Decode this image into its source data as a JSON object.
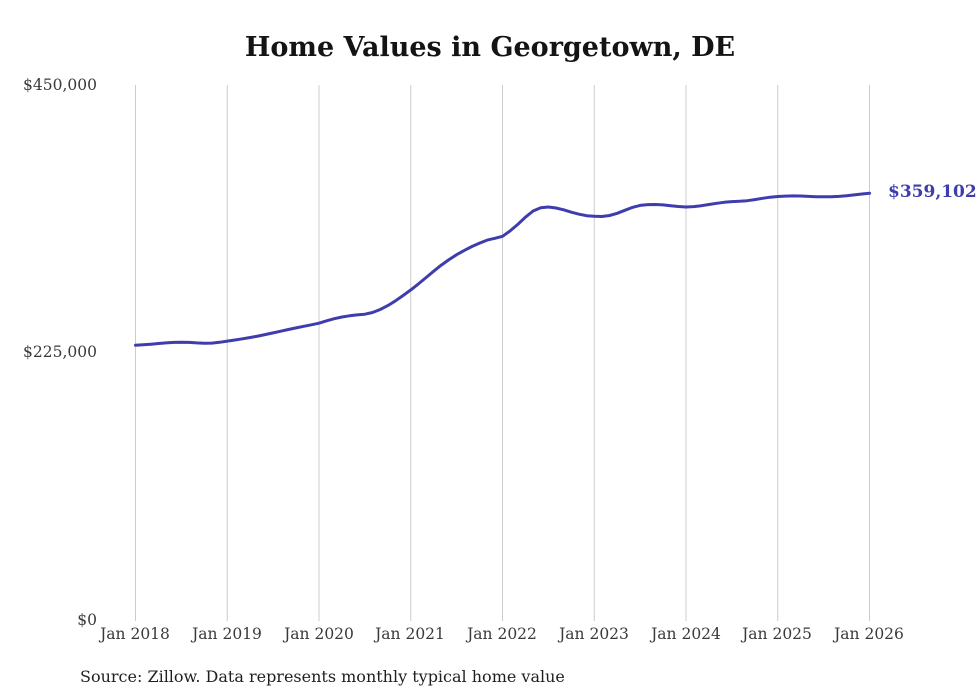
{
  "chart": {
    "title": "Home Values in Georgetown, DE",
    "end_label": "$359,102",
    "source": "Source: Zillow. Data represents monthly typical home value"
  },
  "chart_data": {
    "type": "line",
    "title": "Home Values in Georgetown, DE",
    "xlabel": "",
    "ylabel": "",
    "x_unit": "month",
    "x_start": "Jan 2018",
    "x_end": "Jan 2026",
    "x_ticks": [
      "Jan 2018",
      "Jan 2019",
      "Jan 2020",
      "Jan 2021",
      "Jan 2022",
      "Jan 2023",
      "Jan 2024",
      "Jan 2025",
      "Jan 2026"
    ],
    "y_ticks": [
      "$450,000",
      "$225,000",
      "$0"
    ],
    "ylim": [
      0,
      450000
    ],
    "grid": "vertical-only",
    "grid_color": "#cccccc",
    "legend": "none",
    "line_color": "#3f3dad",
    "label_color": "#3f3dad",
    "final_value": 359102,
    "final_value_label": "$359,102",
    "series_name": "Typical home value",
    "values": [
      231500,
      231900,
      232400,
      233000,
      233500,
      233900,
      234100,
      233900,
      233500,
      233200,
      233300,
      234000,
      235000,
      235900,
      236900,
      238000,
      239200,
      240500,
      241900,
      243300,
      244700,
      246100,
      247400,
      248700,
      250000,
      252000,
      253800,
      255200,
      256200,
      257000,
      257600,
      259000,
      261500,
      264800,
      268800,
      273300,
      278000,
      283000,
      288300,
      293700,
      298800,
      303400,
      307500,
      311100,
      314400,
      317300,
      319800,
      321300,
      323000,
      327500,
      333000,
      339000,
      344200,
      347000,
      347600,
      346700,
      345200,
      343200,
      341500,
      340300,
      339800,
      339600,
      340400,
      342300,
      344800,
      347200,
      348900,
      349600,
      349700,
      349300,
      348700,
      348000,
      347600,
      347900,
      348700,
      349700,
      350700,
      351500,
      352100,
      352400,
      352900,
      353800,
      354900,
      355800,
      356400,
      356700,
      356900,
      356800,
      356500,
      356200,
      356100,
      356200,
      356500,
      357000,
      357700,
      358500,
      359102
    ]
  }
}
